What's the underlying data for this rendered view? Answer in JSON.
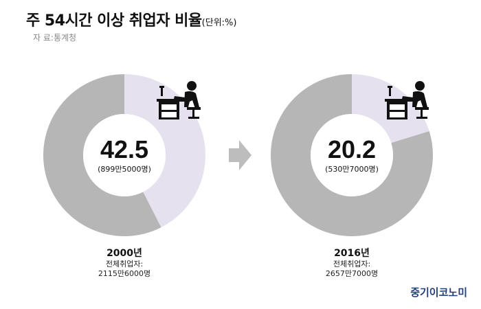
{
  "header": {
    "title": "주 54시간 이상 취업자 비율",
    "unit": "(단위:%)",
    "source": "자 료:통계청"
  },
  "brand": "중기이코노미",
  "colors": {
    "share": "#e6e1ee",
    "rest": "#b6b6b6",
    "arrow": "#bdbdbd",
    "brand": "#23407a"
  },
  "icons": [
    "desk-worker-icon",
    "arrow-right-icon"
  ],
  "chart_data": [
    {
      "type": "pie",
      "style": "donut",
      "year": "2000년",
      "value": 42.5,
      "value_label": "42.5",
      "sub_label": "(899만5000명)",
      "total_label": "전체취업자:",
      "total_value": "2115만6000명",
      "slices": [
        {
          "value": 42.5,
          "color": "#e6e1ee"
        },
        {
          "value": 57.5,
          "color": "#b6b6b6"
        }
      ]
    },
    {
      "type": "pie",
      "style": "donut",
      "year": "2016년",
      "value": 20.2,
      "value_label": "20.2",
      "sub_label": "(530만7000명)",
      "total_label": "전체취업자:",
      "total_value": "2657만7000명",
      "slices": [
        {
          "value": 20.2,
          "color": "#e6e1ee"
        },
        {
          "value": 79.8,
          "color": "#b6b6b6"
        }
      ]
    }
  ]
}
